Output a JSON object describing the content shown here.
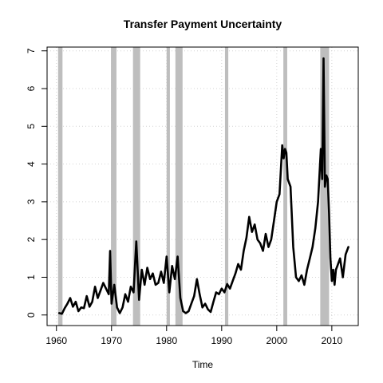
{
  "chart_data": {
    "type": "line",
    "title": "Transfer Payment Uncertainty",
    "xlabel": "Time",
    "ylabel": "",
    "xlim": [
      1958.3,
      2014.8
    ],
    "ylim": [
      -0.28,
      7.1
    ],
    "x_ticks": [
      1960,
      1970,
      1980,
      1990,
      2000,
      2010
    ],
    "y_ticks": [
      0,
      1,
      2,
      3,
      4,
      5,
      6,
      7
    ],
    "grid": true,
    "grid_style": "dotted light gray",
    "line_color": "#000000",
    "shade_color": "#bebebe",
    "recession_periods": [
      [
        1960.3,
        1961.1
      ],
      [
        1969.9,
        1970.9
      ],
      [
        1973.9,
        1975.2
      ],
      [
        1980.0,
        1980.6
      ],
      [
        1981.6,
        1982.9
      ],
      [
        1990.6,
        1991.2
      ],
      [
        2001.2,
        2001.9
      ],
      [
        2007.9,
        2009.5
      ]
    ],
    "series": [
      {
        "x": [
          1960.5,
          1961.0,
          1961.5,
          1962.0,
          1962.5,
          1963.0,
          1963.5,
          1964.0,
          1964.5,
          1965.0,
          1965.5,
          1966.0,
          1966.5,
          1967.0,
          1967.5,
          1968.0,
          1968.5,
          1969.0,
          1969.5,
          1969.75,
          1970.0,
          1970.5,
          1971.0,
          1971.5,
          1972.0,
          1972.5,
          1973.0,
          1973.5,
          1974.0,
          1974.5,
          1975.0,
          1975.5,
          1976.0,
          1976.5,
          1977.0,
          1977.5,
          1978.0,
          1978.5,
          1979.0,
          1979.5,
          1980.0,
          1980.5,
          1981.0,
          1981.5,
          1982.0,
          1982.5,
          1983.0,
          1983.5,
          1984.0,
          1984.5,
          1985.0,
          1985.5,
          1986.0,
          1986.5,
          1987.0,
          1987.5,
          1988.0,
          1988.5,
          1989.0,
          1989.5,
          1990.0,
          1990.5,
          1991.0,
          1991.5,
          1992.0,
          1992.5,
          1993.0,
          1993.5,
          1994.0,
          1994.5,
          1995.0,
          1995.5,
          1996.0,
          1996.5,
          1997.0,
          1997.5,
          1998.0,
          1998.5,
          1999.0,
          1999.5,
          2000.0,
          2000.5,
          2001.0,
          2001.25,
          2001.5,
          2001.75,
          2002.0,
          2002.5,
          2003.0,
          2003.5,
          2004.0,
          2004.5,
          2005.0,
          2005.5,
          2006.0,
          2006.5,
          2007.0,
          2007.5,
          2008.0,
          2008.25,
          2008.5,
          2008.75,
          2009.0,
          2009.25,
          2009.5,
          2009.75,
          2010.0,
          2010.25,
          2010.5,
          2010.75,
          2011.0,
          2011.5,
          2012.0,
          2012.5,
          2013.0
        ],
        "values": [
          0.05,
          0.03,
          0.18,
          0.3,
          0.45,
          0.22,
          0.35,
          0.1,
          0.2,
          0.18,
          0.5,
          0.22,
          0.35,
          0.75,
          0.45,
          0.65,
          0.85,
          0.7,
          0.55,
          1.7,
          0.3,
          0.8,
          0.2,
          0.05,
          0.2,
          0.55,
          0.35,
          0.75,
          0.6,
          1.95,
          0.4,
          1.2,
          0.8,
          1.25,
          0.95,
          1.1,
          0.8,
          0.85,
          1.15,
          0.85,
          1.55,
          0.6,
          1.3,
          0.95,
          1.55,
          0.45,
          0.1,
          0.05,
          0.1,
          0.3,
          0.5,
          0.95,
          0.55,
          0.2,
          0.3,
          0.15,
          0.08,
          0.35,
          0.6,
          0.55,
          0.7,
          0.6,
          0.82,
          0.7,
          0.9,
          1.1,
          1.35,
          1.2,
          1.7,
          2.05,
          2.6,
          2.2,
          2.4,
          2.0,
          1.9,
          1.7,
          2.15,
          1.8,
          2.0,
          2.5,
          3.0,
          3.2,
          4.5,
          4.15,
          4.4,
          4.3,
          3.6,
          3.4,
          1.8,
          1.0,
          0.9,
          1.05,
          0.8,
          1.2,
          1.5,
          1.8,
          2.3,
          3.0,
          4.4,
          3.6,
          6.8,
          3.4,
          3.7,
          3.6,
          2.7,
          1.5,
          0.9,
          1.2,
          0.8,
          1.2,
          1.3,
          1.5,
          1.0,
          1.6,
          1.8
        ]
      }
    ]
  }
}
